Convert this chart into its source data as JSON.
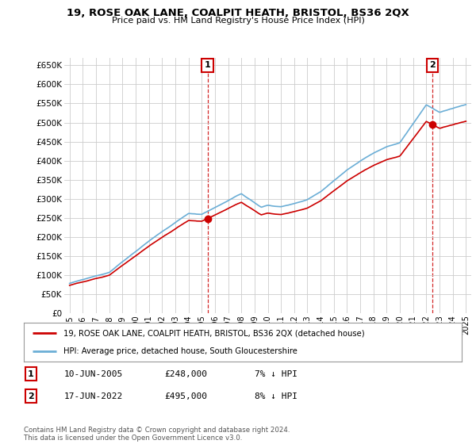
{
  "title1": "19, ROSE OAK LANE, COALPIT HEATH, BRISTOL, BS36 2QX",
  "title2": "Price paid vs. HM Land Registry's House Price Index (HPI)",
  "ylim": [
    0,
    670000
  ],
  "yticks": [
    0,
    50000,
    100000,
    150000,
    200000,
    250000,
    300000,
    350000,
    400000,
    450000,
    500000,
    550000,
    600000,
    650000
  ],
  "ytick_labels": [
    "£0",
    "£50K",
    "£100K",
    "£150K",
    "£200K",
    "£250K",
    "£300K",
    "£350K",
    "£400K",
    "£450K",
    "£500K",
    "£550K",
    "£600K",
    "£650K"
  ],
  "hpi_color": "#6baed6",
  "price_color": "#cc0000",
  "marker1_date": 2005.44,
  "marker1_price": 248000,
  "marker2_date": 2022.46,
  "marker2_price": 495000,
  "legend_line1": "19, ROSE OAK LANE, COALPIT HEATH, BRISTOL, BS36 2QX (detached house)",
  "legend_line2": "HPI: Average price, detached house, South Gloucestershire",
  "note1_label": "1",
  "note1_date": "10-JUN-2005",
  "note1_price": "£248,000",
  "note1_hpi": "7% ↓ HPI",
  "note2_label": "2",
  "note2_date": "17-JUN-2022",
  "note2_price": "£495,000",
  "note2_hpi": "8% ↓ HPI",
  "footer": "Contains HM Land Registry data © Crown copyright and database right 2024.\nThis data is licensed under the Open Government Licence v3.0.",
  "bg_color": "#ffffff",
  "grid_color": "#cccccc",
  "xtick_years": [
    1995,
    1996,
    1997,
    1998,
    1999,
    2000,
    2001,
    2002,
    2003,
    2004,
    2005,
    2006,
    2007,
    2008,
    2009,
    2010,
    2011,
    2012,
    2013,
    2014,
    2015,
    2016,
    2017,
    2018,
    2019,
    2020,
    2021,
    2022,
    2023,
    2024,
    2025
  ]
}
